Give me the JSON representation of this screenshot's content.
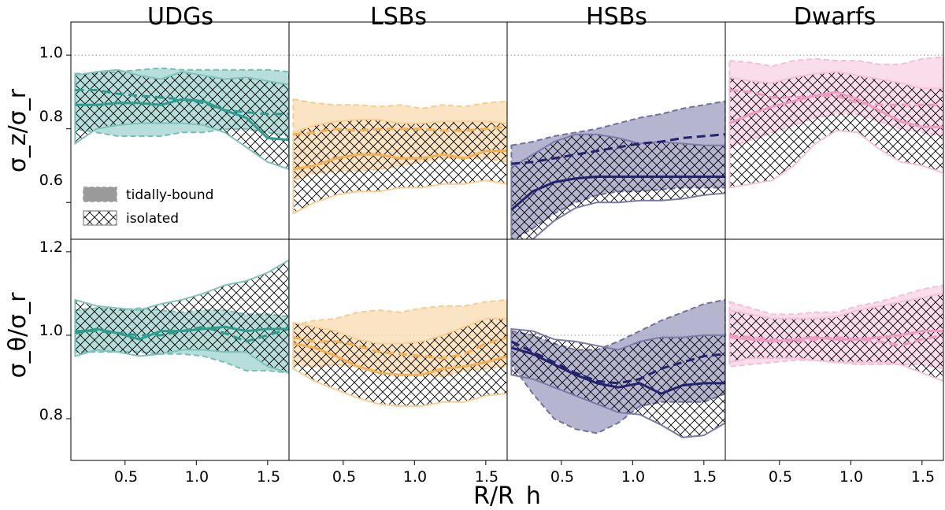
{
  "chart_data": {
    "type": "area",
    "panel_titles": [
      "UDGs",
      "LSBs",
      "HSBs",
      "Dwarfs"
    ],
    "xlabel": "R/R_h",
    "ylabels": [
      "σ_z/σ_r",
      "σ_θ/σ_r"
    ],
    "xlim": [
      0.12,
      1.65
    ],
    "xticks": [
      0.5,
      1.0,
      1.5
    ],
    "xtick_labels": [
      "0.5",
      "1.0",
      "1.5"
    ],
    "rows": [
      {
        "ylim": [
          0.5,
          1.09
        ],
        "yticks": [
          0.6,
          0.8,
          1.0
        ],
        "ytick_labels": [
          "0.6",
          "0.8",
          "1.0"
        ],
        "reference_line": 1.0
      },
      {
        "ylim": [
          0.7,
          1.23
        ],
        "yticks": [
          0.8,
          1.0,
          1.2
        ],
        "ytick_labels": [
          "0.8",
          "1.0",
          "1.2"
        ],
        "reference_line": 1.0
      }
    ],
    "legend": {
      "location": "lower-left of top-left panel",
      "entries": [
        {
          "label": "tidally-bound",
          "style": "filled band, dashed median"
        },
        {
          "label": "isolated",
          "style": "cross-hatched band, solid median"
        }
      ]
    },
    "x": [
      0.15,
      0.3,
      0.45,
      0.6,
      0.75,
      0.9,
      1.05,
      1.2,
      1.35,
      1.5,
      1.65
    ],
    "colors": {
      "UDGs": "#2a9d8f",
      "LSBs": "#f4b04f",
      "HSBs": "#232370",
      "Dwarfs": "#f09ac2"
    },
    "panels": [
      {
        "row": 0,
        "name": "UDGs",
        "tidally_bound": {
          "median": [
            0.905,
            0.905,
            0.895,
            0.89,
            0.885,
            0.88,
            0.87,
            0.85,
            0.845,
            0.84,
            0.84
          ],
          "lower": [
            0.8,
            0.79,
            0.78,
            0.78,
            0.78,
            0.79,
            0.79,
            0.8,
            0.8,
            0.79,
            0.78
          ],
          "upper": [
            0.95,
            0.95,
            0.955,
            0.96,
            0.965,
            0.96,
            0.96,
            0.96,
            0.96,
            0.96,
            0.955
          ]
        },
        "isolated": {
          "median": [
            0.865,
            0.865,
            0.87,
            0.87,
            0.865,
            0.88,
            0.875,
            0.85,
            0.83,
            0.775,
            0.77
          ],
          "lower": [
            0.76,
            0.8,
            0.81,
            0.815,
            0.815,
            0.815,
            0.81,
            0.79,
            0.75,
            0.71,
            0.69
          ],
          "upper": [
            0.945,
            0.955,
            0.96,
            0.945,
            0.935,
            0.955,
            0.945,
            0.935,
            0.94,
            0.93,
            0.92
          ]
        }
      },
      {
        "row": 0,
        "name": "LSBs",
        "tidally_bound": {
          "median": [
            0.785,
            0.79,
            0.8,
            0.795,
            0.8,
            0.8,
            0.8,
            0.795,
            0.795,
            0.8,
            0.805
          ],
          "lower": [
            0.66,
            0.68,
            0.685,
            0.685,
            0.69,
            0.7,
            0.71,
            0.72,
            0.72,
            0.72,
            0.71
          ],
          "upper": [
            0.88,
            0.87,
            0.865,
            0.865,
            0.86,
            0.865,
            0.855,
            0.865,
            0.86,
            0.87,
            0.875
          ]
        },
        "isolated": {
          "median": [
            0.69,
            0.7,
            0.72,
            0.73,
            0.73,
            0.72,
            0.72,
            0.73,
            0.72,
            0.74,
            0.74
          ],
          "lower": [
            0.57,
            0.6,
            0.62,
            0.63,
            0.63,
            0.64,
            0.64,
            0.65,
            0.65,
            0.66,
            0.65
          ],
          "upper": [
            0.79,
            0.81,
            0.82,
            0.825,
            0.825,
            0.815,
            0.815,
            0.82,
            0.82,
            0.82,
            0.815
          ]
        }
      },
      {
        "row": 0,
        "name": "HSBs",
        "tidally_bound": {
          "median": [
            0.705,
            0.71,
            0.72,
            0.73,
            0.74,
            0.75,
            0.76,
            0.765,
            0.775,
            0.78,
            0.785
          ],
          "lower": [
            0.495,
            0.53,
            0.57,
            0.6,
            0.62,
            0.63,
            0.63,
            0.635,
            0.64,
            0.64,
            0.64
          ],
          "upper": [
            0.755,
            0.765,
            0.78,
            0.79,
            0.8,
            0.815,
            0.83,
            0.84,
            0.855,
            0.865,
            0.875
          ]
        },
        "isolated": {
          "median": [
            0.58,
            0.63,
            0.655,
            0.665,
            0.67,
            0.67,
            0.67,
            0.67,
            0.67,
            0.67,
            0.67
          ],
          "lower": [
            0.48,
            0.5,
            0.55,
            0.585,
            0.6,
            0.6,
            0.605,
            0.605,
            0.61,
            0.62,
            0.625
          ],
          "upper": [
            0.695,
            0.73,
            0.765,
            0.785,
            0.785,
            0.775,
            0.76,
            0.765,
            0.76,
            0.755,
            0.755
          ]
        }
      },
      {
        "row": 0,
        "name": "Dwarfs",
        "tidally_bound": {
          "median": [
            0.905,
            0.9,
            0.885,
            0.885,
            0.89,
            0.89,
            0.87,
            0.865,
            0.865,
            0.865,
            0.865
          ],
          "lower": [
            0.75,
            0.77,
            0.79,
            0.81,
            0.83,
            0.84,
            0.84,
            0.82,
            0.8,
            0.79,
            0.78
          ],
          "upper": [
            0.985,
            0.98,
            0.97,
            0.985,
            0.99,
            0.985,
            0.985,
            0.975,
            0.975,
            0.99,
            0.995
          ]
        },
        "isolated": {
          "median": [
            0.815,
            0.84,
            0.86,
            0.875,
            0.89,
            0.9,
            0.88,
            0.85,
            0.82,
            0.805,
            0.805
          ],
          "lower": [
            0.64,
            0.65,
            0.66,
            0.7,
            0.76,
            0.795,
            0.79,
            0.745,
            0.71,
            0.7,
            0.68
          ],
          "upper": [
            0.94,
            0.93,
            0.925,
            0.94,
            0.95,
            0.955,
            0.945,
            0.935,
            0.925,
            0.91,
            0.91
          ]
        }
      },
      {
        "row": 1,
        "name": "UDGs",
        "tidally_bound": {
          "median": [
            1.01,
            1.01,
            1.005,
            1.0,
            1.0,
            1.01,
            1.02,
            1.005,
            0.985,
            1.0,
            1.015
          ],
          "lower": [
            0.96,
            0.96,
            0.96,
            0.96,
            0.955,
            0.955,
            0.95,
            0.935,
            0.915,
            0.915,
            0.91
          ],
          "upper": [
            1.06,
            1.065,
            1.06,
            1.065,
            1.06,
            1.055,
            1.06,
            1.06,
            1.05,
            1.05,
            1.045
          ]
        },
        "isolated": {
          "median": [
            1.005,
            1.015,
            1.005,
            0.99,
            1.01,
            1.01,
            1.015,
            1.02,
            1.01,
            1.015,
            1.015
          ],
          "lower": [
            0.95,
            0.965,
            0.96,
            0.95,
            0.955,
            0.965,
            0.965,
            0.96,
            0.96,
            0.925,
            0.91
          ],
          "upper": [
            1.085,
            1.07,
            1.065,
            1.06,
            1.075,
            1.085,
            1.1,
            1.12,
            1.13,
            1.15,
            1.18
          ]
        }
      },
      {
        "row": 1,
        "name": "LSBs",
        "tidally_bound": {
          "median": [
            0.995,
            0.985,
            0.985,
            0.975,
            0.96,
            0.955,
            0.95,
            0.945,
            0.955,
            0.98,
            0.995
          ],
          "lower": [
            0.93,
            0.925,
            0.93,
            0.925,
            0.915,
            0.915,
            0.91,
            0.9,
            0.915,
            0.92,
            0.925
          ],
          "upper": [
            1.025,
            1.035,
            1.04,
            1.055,
            1.06,
            1.055,
            1.065,
            1.07,
            1.07,
            1.08,
            1.085
          ]
        },
        "isolated": {
          "median": [
            0.98,
            0.97,
            0.95,
            0.925,
            0.91,
            0.905,
            0.905,
            0.92,
            0.925,
            0.935,
            0.95
          ],
          "lower": [
            0.92,
            0.89,
            0.87,
            0.85,
            0.835,
            0.83,
            0.83,
            0.84,
            0.84,
            0.855,
            0.86
          ],
          "upper": [
            1.03,
            1.02,
            1.01,
            0.99,
            0.98,
            0.98,
            0.985,
            1.0,
            1.02,
            1.04,
            1.04
          ]
        }
      },
      {
        "row": 1,
        "name": "HSBs",
        "tidally_bound": {
          "median": [
            0.985,
            0.96,
            0.935,
            0.91,
            0.89,
            0.885,
            0.895,
            0.92,
            0.935,
            0.95,
            0.955
          ],
          "lower": [
            0.93,
            0.86,
            0.8,
            0.775,
            0.765,
            0.79,
            0.83,
            0.84,
            0.84,
            0.84,
            0.86
          ],
          "upper": [
            1.01,
            1.0,
            0.98,
            0.965,
            0.965,
            0.985,
            1.01,
            1.035,
            1.055,
            1.075,
            1.085
          ]
        },
        "isolated": {
          "median": [
            0.97,
            0.955,
            0.93,
            0.905,
            0.885,
            0.875,
            0.885,
            0.86,
            0.88,
            0.885,
            0.885
          ],
          "lower": [
            0.905,
            0.895,
            0.875,
            0.855,
            0.835,
            0.815,
            0.81,
            0.785,
            0.755,
            0.76,
            0.79
          ],
          "upper": [
            1.015,
            1.01,
            0.99,
            0.985,
            0.975,
            0.965,
            0.985,
            0.995,
            0.995,
            1.0,
            1.0
          ]
        }
      },
      {
        "row": 1,
        "name": "Dwarfs",
        "tidally_bound": {
          "median": [
            1.0,
            0.995,
            0.99,
            0.985,
            0.99,
            0.995,
            0.99,
            0.985,
            0.975,
            0.99,
            1.0
          ],
          "lower": [
            0.925,
            0.93,
            0.935,
            0.94,
            0.94,
            0.935,
            0.93,
            0.93,
            0.93,
            0.93,
            0.92
          ],
          "upper": [
            1.08,
            1.065,
            1.05,
            1.05,
            1.055,
            1.055,
            1.07,
            1.08,
            1.095,
            1.11,
            1.12
          ]
        },
        "isolated": {
          "median": [
            0.995,
            0.99,
            0.985,
            0.99,
            0.995,
            0.99,
            0.99,
            0.995,
            1.0,
            1.01,
            1.01
          ],
          "lower": [
            0.935,
            0.945,
            0.945,
            0.945,
            0.94,
            0.935,
            0.935,
            0.935,
            0.93,
            0.91,
            0.89
          ],
          "upper": [
            1.06,
            1.05,
            1.04,
            1.04,
            1.04,
            1.045,
            1.06,
            1.07,
            1.08,
            1.09,
            1.1
          ]
        }
      }
    ]
  }
}
